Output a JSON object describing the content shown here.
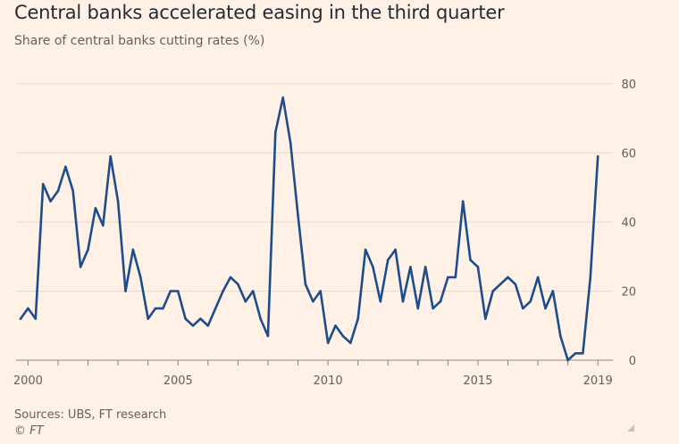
{
  "title": "Central banks accelerated easing in the third quarter",
  "subtitle": "Share of central banks cutting rates (%)",
  "source": "Sources: UBS, FT research",
  "copyright": "© FT",
  "colors": {
    "background": "#fff1e5",
    "line": "#1d4d8d",
    "grid": "#e6d9ce",
    "tick_text": "#66605c"
  },
  "chart_data": {
    "type": "line",
    "title": "Central banks accelerated easing in the third quarter",
    "ylabel": "Share of central banks cutting rates (%)",
    "ylim": [
      0,
      80
    ],
    "yticks": [
      0,
      20,
      40,
      60,
      80
    ],
    "xlim": [
      1999.75,
      2019.5
    ],
    "xticks": [
      2000,
      2005,
      2010,
      2015,
      2019
    ],
    "xtick_labels": [
      "2000",
      "2005",
      "2010",
      "2015",
      "2019"
    ],
    "grid": true,
    "y_axis_side": "right",
    "series": [
      {
        "name": "",
        "points": [
          [
            1999.75,
            12
          ],
          [
            2000.0,
            15
          ],
          [
            2000.25,
            12
          ],
          [
            2000.5,
            51
          ],
          [
            2000.75,
            46
          ],
          [
            2001.0,
            49
          ],
          [
            2001.25,
            56
          ],
          [
            2001.5,
            49
          ],
          [
            2001.75,
            27
          ],
          [
            2002.0,
            32
          ],
          [
            2002.25,
            44
          ],
          [
            2002.5,
            39
          ],
          [
            2002.75,
            59
          ],
          [
            2003.0,
            46
          ],
          [
            2003.25,
            20
          ],
          [
            2003.5,
            32
          ],
          [
            2003.75,
            24
          ],
          [
            2004.0,
            12
          ],
          [
            2004.25,
            15
          ],
          [
            2004.5,
            15
          ],
          [
            2004.75,
            20
          ],
          [
            2005.0,
            20
          ],
          [
            2005.25,
            12
          ],
          [
            2005.5,
            10
          ],
          [
            2005.75,
            12
          ],
          [
            2006.0,
            10
          ],
          [
            2006.25,
            15
          ],
          [
            2006.5,
            20
          ],
          [
            2006.75,
            24
          ],
          [
            2007.0,
            22
          ],
          [
            2007.25,
            17
          ],
          [
            2007.5,
            20
          ],
          [
            2007.75,
            12
          ],
          [
            2008.0,
            7
          ],
          [
            2008.25,
            66
          ],
          [
            2008.5,
            76
          ],
          [
            2008.75,
            63
          ],
          [
            2009.0,
            42
          ],
          [
            2009.25,
            22
          ],
          [
            2009.5,
            17
          ],
          [
            2009.75,
            20
          ],
          [
            2010.0,
            5
          ],
          [
            2010.25,
            10
          ],
          [
            2010.5,
            7
          ],
          [
            2010.75,
            5
          ],
          [
            2011.0,
            12
          ],
          [
            2011.25,
            32
          ],
          [
            2011.5,
            27
          ],
          [
            2011.75,
            17
          ],
          [
            2012.0,
            29
          ],
          [
            2012.25,
            32
          ],
          [
            2012.5,
            17
          ],
          [
            2012.75,
            27
          ],
          [
            2013.0,
            15
          ],
          [
            2013.25,
            27
          ],
          [
            2013.5,
            15
          ],
          [
            2013.75,
            17
          ],
          [
            2014.0,
            24
          ],
          [
            2014.25,
            24
          ],
          [
            2014.5,
            46
          ],
          [
            2014.75,
            29
          ],
          [
            2015.0,
            27
          ],
          [
            2015.25,
            12
          ],
          [
            2015.5,
            20
          ],
          [
            2015.75,
            22
          ],
          [
            2016.0,
            24
          ],
          [
            2016.25,
            22
          ],
          [
            2016.5,
            15
          ],
          [
            2016.75,
            17
          ],
          [
            2017.0,
            24
          ],
          [
            2017.25,
            15
          ],
          [
            2017.5,
            20
          ],
          [
            2017.75,
            7
          ],
          [
            2018.0,
            0
          ],
          [
            2018.25,
            2
          ],
          [
            2018.5,
            2
          ],
          [
            2018.75,
            24
          ],
          [
            2019.0,
            59
          ]
        ]
      }
    ]
  }
}
